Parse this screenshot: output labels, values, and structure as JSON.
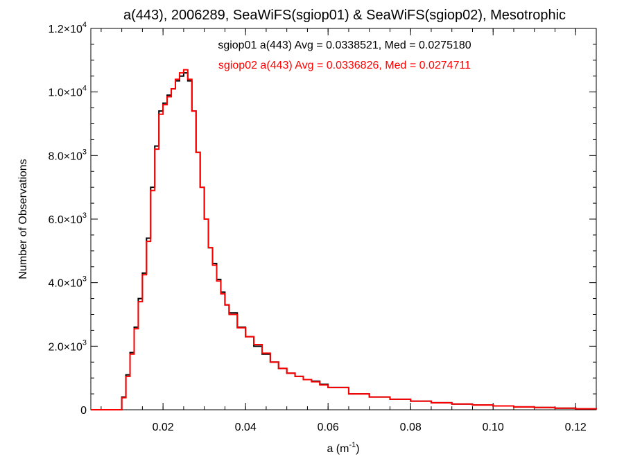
{
  "chart_data": {
    "type": "line",
    "title": "a(443), 2006289, SeaWiFS(sgiop01) & SeaWiFS(sgiop02), Mesotrophic",
    "xlabel_base": "a (m",
    "xlabel_exp": "-1",
    "xlabel_close": ")",
    "ylabel": "Number of Observations",
    "xlim": [
      0.0025,
      0.125
    ],
    "ylim": [
      0,
      12000
    ],
    "grid": false,
    "x_ticks": [
      {
        "value": 0.02,
        "label": "0.02"
      },
      {
        "value": 0.04,
        "label": "0.04"
      },
      {
        "value": 0.06,
        "label": "0.06"
      },
      {
        "value": 0.08,
        "label": "0.08"
      },
      {
        "value": 0.1,
        "label": "0.10"
      },
      {
        "value": 0.12,
        "label": "0.12"
      }
    ],
    "y_ticks": [
      {
        "value": 0,
        "mant": "0",
        "exp": ""
      },
      {
        "value": 2000,
        "mant": "2.0×10",
        "exp": "3"
      },
      {
        "value": 4000,
        "mant": "4.0×10",
        "exp": "3"
      },
      {
        "value": 6000,
        "mant": "6.0×10",
        "exp": "3"
      },
      {
        "value": 8000,
        "mant": "8.0×10",
        "exp": "3"
      },
      {
        "value": 10000,
        "mant": "1.0×10",
        "exp": "4"
      },
      {
        "value": 12000,
        "mant": "1.2×10",
        "exp": "4"
      }
    ],
    "annotations": [
      {
        "text": "sgiop01 a(443) Avg = 0.0338521, Med = 0.0275180",
        "color": "#000000"
      },
      {
        "text": "sgiop02 a(443) Avg = 0.0336826, Med = 0.0274711",
        "color": "#ff0000"
      }
    ],
    "series": [
      {
        "name": "sgiop01",
        "color": "#000000",
        "step": true,
        "x": [
          0.0025,
          0.009,
          0.01,
          0.011,
          0.012,
          0.013,
          0.014,
          0.015,
          0.016,
          0.017,
          0.018,
          0.019,
          0.02,
          0.021,
          0.022,
          0.023,
          0.024,
          0.025,
          0.026,
          0.027,
          0.028,
          0.029,
          0.03,
          0.031,
          0.032,
          0.033,
          0.034,
          0.035,
          0.036,
          0.038,
          0.04,
          0.042,
          0.044,
          0.046,
          0.048,
          0.05,
          0.052,
          0.054,
          0.056,
          0.058,
          0.06,
          0.065,
          0.07,
          0.075,
          0.08,
          0.085,
          0.09,
          0.095,
          0.1,
          0.105,
          0.11,
          0.115,
          0.12,
          0.125
        ],
        "y": [
          0,
          0,
          400,
          1100,
          1800,
          2600,
          3500,
          4300,
          5400,
          7000,
          8300,
          9400,
          9650,
          9900,
          10100,
          10350,
          10500,
          10600,
          10350,
          9400,
          8100,
          7000,
          6000,
          5100,
          4600,
          4100,
          3700,
          3300,
          3050,
          2600,
          2300,
          2000,
          1750,
          1500,
          1300,
          1150,
          1050,
          950,
          900,
          800,
          700,
          500,
          400,
          330,
          270,
          220,
          180,
          150,
          120,
          90,
          70,
          50,
          30,
          10
        ]
      },
      {
        "name": "sgiop02",
        "color": "#ff0000",
        "step": true,
        "x": [
          0.0025,
          0.009,
          0.01,
          0.011,
          0.012,
          0.013,
          0.014,
          0.015,
          0.016,
          0.017,
          0.018,
          0.019,
          0.02,
          0.021,
          0.022,
          0.023,
          0.024,
          0.025,
          0.026,
          0.027,
          0.028,
          0.029,
          0.03,
          0.031,
          0.032,
          0.033,
          0.034,
          0.035,
          0.036,
          0.038,
          0.04,
          0.042,
          0.044,
          0.046,
          0.048,
          0.05,
          0.052,
          0.054,
          0.056,
          0.058,
          0.06,
          0.065,
          0.07,
          0.075,
          0.08,
          0.085,
          0.09,
          0.095,
          0.1,
          0.105,
          0.11,
          0.115,
          0.12,
          0.125
        ],
        "y": [
          0,
          0,
          380,
          1050,
          1750,
          2550,
          3400,
          4250,
          5300,
          6900,
          8200,
          9300,
          9600,
          9850,
          10100,
          10400,
          10600,
          10700,
          10400,
          9400,
          8100,
          7000,
          6000,
          5100,
          4550,
          4050,
          3650,
          3300,
          3000,
          2580,
          2300,
          2050,
          1780,
          1500,
          1300,
          1150,
          1050,
          950,
          880,
          780,
          700,
          500,
          400,
          330,
          270,
          220,
          180,
          150,
          120,
          90,
          70,
          50,
          30,
          10
        ]
      }
    ]
  }
}
